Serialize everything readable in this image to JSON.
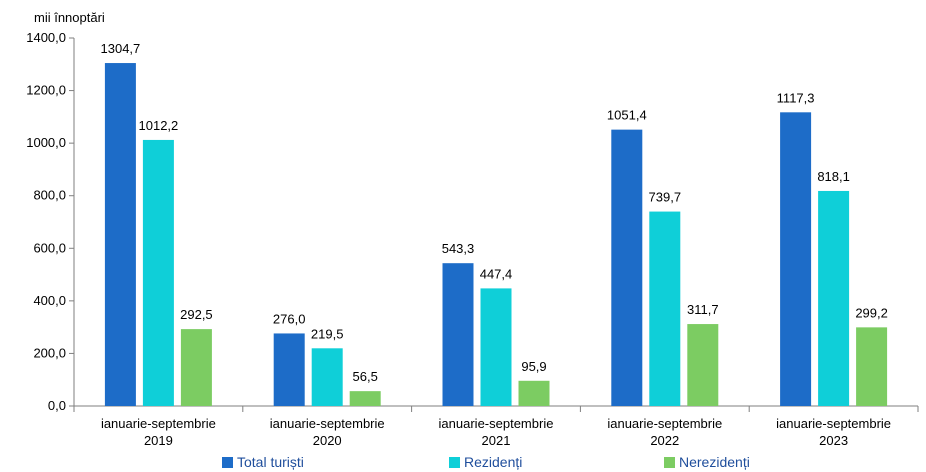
{
  "chart_data": {
    "type": "bar",
    "unit_label": "mii înnoptări",
    "categories": [
      [
        "ianuarie-septembrie",
        "2019"
      ],
      [
        "ianuarie-septembrie",
        "2020"
      ],
      [
        "ianuarie-septembrie",
        "2021"
      ],
      [
        "ianuarie-septembrie",
        "2022"
      ],
      [
        "ianuarie-septembrie",
        "2023"
      ]
    ],
    "series": [
      {
        "name": "Total turiști",
        "color": "#1d6cc8",
        "values": [
          1304.7,
          276.0,
          543.3,
          1051.4,
          1117.3
        ],
        "labels": [
          "1304,7",
          "276,0",
          "543,3",
          "1051,4",
          "1117,3"
        ]
      },
      {
        "name": "Rezidenți",
        "color": "#0fcfd8",
        "values": [
          1012.2,
          219.5,
          447.4,
          739.7,
          818.1
        ],
        "labels": [
          "1012,2",
          "219,5",
          "447,4",
          "739,7",
          "818,1"
        ]
      },
      {
        "name": "Nerezidenți",
        "color": "#7ccc62",
        "values": [
          292.5,
          56.5,
          95.9,
          311.7,
          299.2
        ],
        "labels": [
          "292,5",
          "56,5",
          "95,9",
          "311,7",
          "299,2"
        ]
      }
    ],
    "ylim": [
      0,
      1400
    ],
    "yticks": [
      "0,0",
      "200,0",
      "400,0",
      "600,0",
      "800,0",
      "1000,0",
      "1200,0",
      "1400,0"
    ],
    "ytick_values": [
      0,
      200,
      400,
      600,
      800,
      1000,
      1200,
      1400
    ],
    "grid": false,
    "legend_position": "bottom"
  }
}
